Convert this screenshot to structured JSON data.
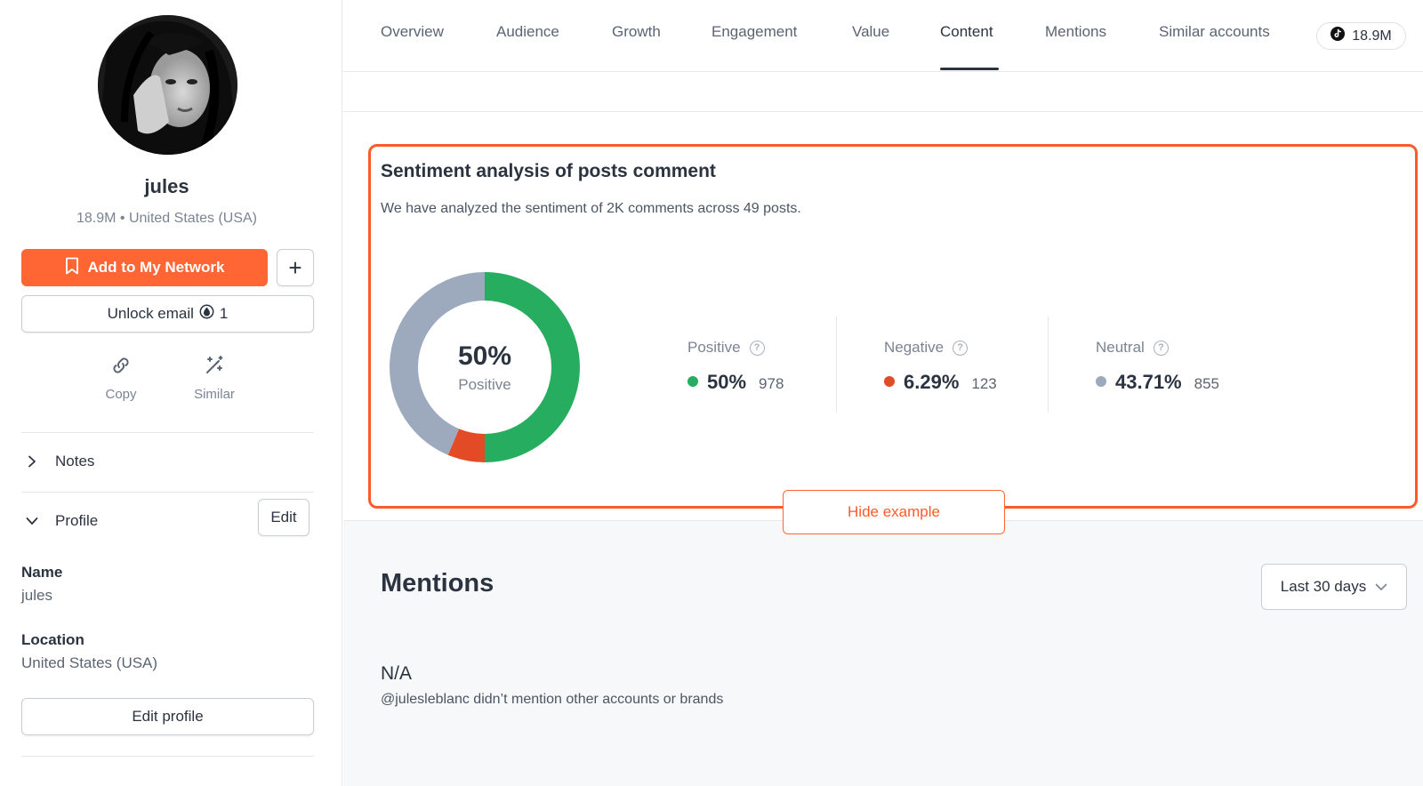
{
  "profile": {
    "name": "jules",
    "subtitle": "18.9M • United States (USA)",
    "add_network_label": "Add to My Network",
    "plus_label": "+",
    "unlock_label": "Unlock email",
    "unlock_credits": "1",
    "copy_label": "Copy",
    "similar_label": "Similar",
    "notes_label": "Notes",
    "profile_label": "Profile",
    "edit_label": "Edit",
    "name_label": "Name",
    "name_value": "jules",
    "location_label": "Location",
    "location_value": "United States (USA)",
    "edit_profile_label": "Edit profile"
  },
  "tabs": [
    {
      "label": "Overview"
    },
    {
      "label": "Audience"
    },
    {
      "label": "Growth"
    },
    {
      "label": "Engagement"
    },
    {
      "label": "Value"
    },
    {
      "label": "Content",
      "active": true
    },
    {
      "label": "Mentions"
    },
    {
      "label": "Similar accounts"
    }
  ],
  "followers_badge": "18.9M",
  "sentiment": {
    "title": "Sentiment analysis of posts comment",
    "description": "We have analyzed the sentiment of 2K comments across 49 posts.",
    "center_value": "50%",
    "center_label": "Positive",
    "positive": {
      "label": "Positive",
      "pct": "50%",
      "count": "978",
      "fraction": 0.5,
      "color": "#26ad5f"
    },
    "negative": {
      "label": "Negative",
      "pct": "6.29%",
      "count": "123",
      "fraction": 0.0629,
      "color": "#e34a26"
    },
    "neutral": {
      "label": "Neutral",
      "pct": "43.71%",
      "count": "855",
      "fraction": 0.4371,
      "color": "#9daabd"
    },
    "hide_label": "Hide example"
  },
  "mentions": {
    "title": "Mentions",
    "range_label": "Last 30 days",
    "empty_value": "N/A",
    "empty_desc": "@julesleblanc didn’t mention other accounts or brands"
  },
  "colors": {
    "accent": "#ff6633",
    "highlight_border": "#ff5a2a"
  }
}
